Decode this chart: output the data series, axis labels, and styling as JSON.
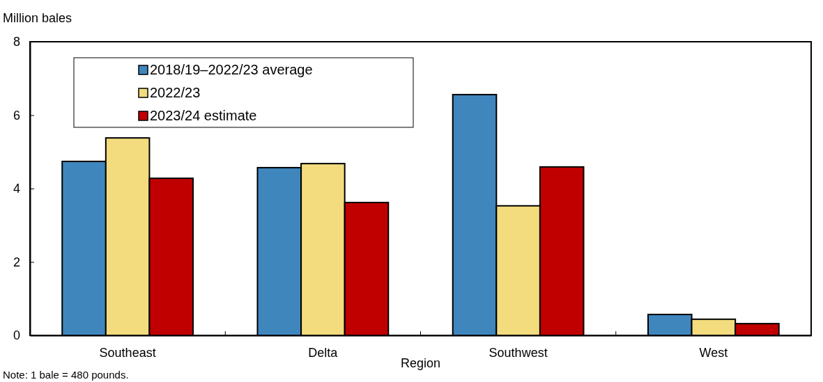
{
  "chart_data": {
    "type": "bar",
    "ylabel": "Million bales",
    "xlabel": "Region",
    "categories": [
      "Southeast",
      "Delta",
      "Southwest",
      "West"
    ],
    "series": [
      {
        "name": "2018/19–2022/23 average",
        "color": "#3f86bd",
        "values": [
          4.74,
          4.57,
          6.56,
          0.57
        ]
      },
      {
        "name": "2022/23",
        "color": "#f3dc7e",
        "values": [
          5.38,
          4.68,
          3.53,
          0.44
        ]
      },
      {
        "name": "2023/24 estimate",
        "color": "#c00000",
        "values": [
          4.28,
          3.62,
          4.59,
          0.32
        ]
      }
    ],
    "ylim": [
      0,
      8
    ],
    "yticks": [
      0,
      2,
      4,
      6,
      8
    ],
    "grid": false,
    "legend": "top left",
    "annotations": [
      "Note: 1 bale = 480 pounds."
    ]
  }
}
